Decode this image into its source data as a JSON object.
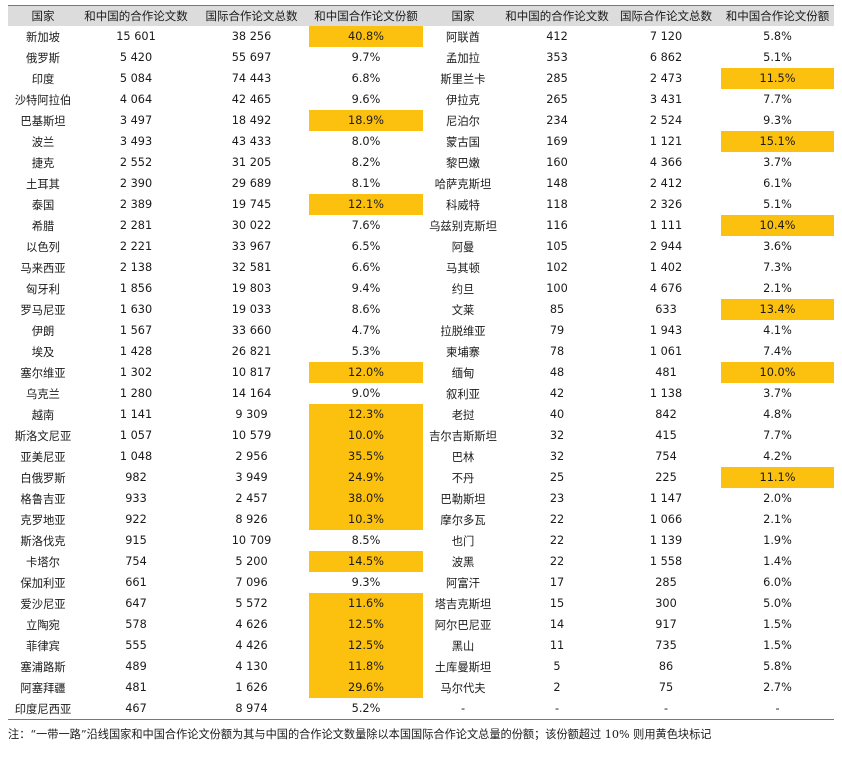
{
  "headers": [
    "国家",
    "和中国的合作论文数",
    "国际合作论文总数",
    "和中国合作论文份额",
    "国家",
    "和中国的合作论文数",
    "国际合作论文总数",
    "和中国合作论文份额"
  ],
  "rows": [
    {
      "c": "新加坡",
      "p": "15 601",
      "t": "38 256",
      "s": "40.8%",
      "h": true,
      "c2": "阿联酋",
      "p2": "412",
      "t2": "7 120",
      "s2": "5.8%",
      "h2": false
    },
    {
      "c": "俄罗斯",
      "p": "5 420",
      "t": "55 697",
      "s": "9.7%",
      "h": false,
      "c2": "孟加拉",
      "p2": "353",
      "t2": "6 862",
      "s2": "5.1%",
      "h2": false
    },
    {
      "c": "印度",
      "p": "5 084",
      "t": "74 443",
      "s": "6.8%",
      "h": false,
      "c2": "斯里兰卡",
      "p2": "285",
      "t2": "2 473",
      "s2": "11.5%",
      "h2": true
    },
    {
      "c": "沙特阿拉伯",
      "p": "4 064",
      "t": "42 465",
      "s": "9.6%",
      "h": false,
      "c2": "伊拉克",
      "p2": "265",
      "t2": "3 431",
      "s2": "7.7%",
      "h2": false
    },
    {
      "c": "巴基斯坦",
      "p": "3 497",
      "t": "18 492",
      "s": "18.9%",
      "h": true,
      "c2": "尼泊尔",
      "p2": "234",
      "t2": "2 524",
      "s2": "9.3%",
      "h2": false
    },
    {
      "c": "波兰",
      "p": "3 493",
      "t": "43 433",
      "s": "8.0%",
      "h": false,
      "c2": "蒙古国",
      "p2": "169",
      "t2": "1 121",
      "s2": "15.1%",
      "h2": true
    },
    {
      "c": "捷克",
      "p": "2 552",
      "t": "31 205",
      "s": "8.2%",
      "h": false,
      "c2": "黎巴嫩",
      "p2": "160",
      "t2": "4 366",
      "s2": "3.7%",
      "h2": false
    },
    {
      "c": "土耳其",
      "p": "2 390",
      "t": "29 689",
      "s": "8.1%",
      "h": false,
      "c2": "哈萨克斯坦",
      "p2": "148",
      "t2": "2 412",
      "s2": "6.1%",
      "h2": false
    },
    {
      "c": "泰国",
      "p": "2 389",
      "t": "19 745",
      "s": "12.1%",
      "h": true,
      "c2": "科威特",
      "p2": "118",
      "t2": "2 326",
      "s2": "5.1%",
      "h2": false
    },
    {
      "c": "希腊",
      "p": "2 281",
      "t": "30 022",
      "s": "7.6%",
      "h": false,
      "c2": "乌兹别克斯坦",
      "p2": "116",
      "t2": "1 111",
      "s2": "10.4%",
      "h2": true
    },
    {
      "c": "以色列",
      "p": "2 221",
      "t": "33 967",
      "s": "6.5%",
      "h": false,
      "c2": "阿曼",
      "p2": "105",
      "t2": "2 944",
      "s2": "3.6%",
      "h2": false
    },
    {
      "c": "马来西亚",
      "p": "2 138",
      "t": "32 581",
      "s": "6.6%",
      "h": false,
      "c2": "马其顿",
      "p2": "102",
      "t2": "1 402",
      "s2": "7.3%",
      "h2": false
    },
    {
      "c": "匈牙利",
      "p": "1 856",
      "t": "19 803",
      "s": "9.4%",
      "h": false,
      "c2": "约旦",
      "p2": "100",
      "t2": "4 676",
      "s2": "2.1%",
      "h2": false
    },
    {
      "c": "罗马尼亚",
      "p": "1 630",
      "t": "19 033",
      "s": "8.6%",
      "h": false,
      "c2": "文莱",
      "p2": "85",
      "t2": "633",
      "s2": "13.4%",
      "h2": true
    },
    {
      "c": "伊朗",
      "p": "1 567",
      "t": "33 660",
      "s": "4.7%",
      "h": false,
      "c2": "拉脱维亚",
      "p2": "79",
      "t2": "1 943",
      "s2": "4.1%",
      "h2": false
    },
    {
      "c": "埃及",
      "p": "1 428",
      "t": "26 821",
      "s": "5.3%",
      "h": false,
      "c2": "柬埔寨",
      "p2": "78",
      "t2": "1 061",
      "s2": "7.4%",
      "h2": false
    },
    {
      "c": "塞尔维亚",
      "p": "1 302",
      "t": "10 817",
      "s": "12.0%",
      "h": true,
      "c2": "缅甸",
      "p2": "48",
      "t2": "481",
      "s2": "10.0%",
      "h2": true
    },
    {
      "c": "乌克兰",
      "p": "1 280",
      "t": "14 164",
      "s": "9.0%",
      "h": false,
      "c2": "叙利亚",
      "p2": "42",
      "t2": "1 138",
      "s2": "3.7%",
      "h2": false
    },
    {
      "c": "越南",
      "p": "1 141",
      "t": "9 309",
      "s": "12.3%",
      "h": true,
      "c2": "老挝",
      "p2": "40",
      "t2": "842",
      "s2": "4.8%",
      "h2": false
    },
    {
      "c": "斯洛文尼亚",
      "p": "1 057",
      "t": "10 579",
      "s": "10.0%",
      "h": true,
      "c2": "吉尔吉斯斯坦",
      "p2": "32",
      "t2": "415",
      "s2": "7.7%",
      "h2": false
    },
    {
      "c": "亚美尼亚",
      "p": "1 048",
      "t": "2 956",
      "s": "35.5%",
      "h": true,
      "c2": "巴林",
      "p2": "32",
      "t2": "754",
      "s2": "4.2%",
      "h2": false
    },
    {
      "c": "白俄罗斯",
      "p": "982",
      "t": "3 949",
      "s": "24.9%",
      "h": true,
      "c2": "不丹",
      "p2": "25",
      "t2": "225",
      "s2": "11.1%",
      "h2": true
    },
    {
      "c": "格鲁吉亚",
      "p": "933",
      "t": "2 457",
      "s": "38.0%",
      "h": true,
      "c2": "巴勒斯坦",
      "p2": "23",
      "t2": "1 147",
      "s2": "2.0%",
      "h2": false
    },
    {
      "c": "克罗地亚",
      "p": "922",
      "t": "8 926",
      "s": "10.3%",
      "h": true,
      "c2": "摩尔多瓦",
      "p2": "22",
      "t2": "1 066",
      "s2": "2.1%",
      "h2": false
    },
    {
      "c": "斯洛伐克",
      "p": "915",
      "t": "10 709",
      "s": "8.5%",
      "h": false,
      "c2": "也门",
      "p2": "22",
      "t2": "1 139",
      "s2": "1.9%",
      "h2": false
    },
    {
      "c": "卡塔尔",
      "p": "754",
      "t": "5 200",
      "s": "14.5%",
      "h": true,
      "c2": "波黑",
      "p2": "22",
      "t2": "1 558",
      "s2": "1.4%",
      "h2": false
    },
    {
      "c": "保加利亚",
      "p": "661",
      "t": "7 096",
      "s": "9.3%",
      "h": false,
      "c2": "阿富汗",
      "p2": "17",
      "t2": "285",
      "s2": "6.0%",
      "h2": false
    },
    {
      "c": "爱沙尼亚",
      "p": "647",
      "t": "5 572",
      "s": "11.6%",
      "h": true,
      "c2": "塔吉克斯坦",
      "p2": "15",
      "t2": "300",
      "s2": "5.0%",
      "h2": false
    },
    {
      "c": "立陶宛",
      "p": "578",
      "t": "4 626",
      "s": "12.5%",
      "h": true,
      "c2": "阿尔巴尼亚",
      "p2": "14",
      "t2": "917",
      "s2": "1.5%",
      "h2": false
    },
    {
      "c": "菲律宾",
      "p": "555",
      "t": "4 426",
      "s": "12.5%",
      "h": true,
      "c2": "黑山",
      "p2": "11",
      "t2": "735",
      "s2": "1.5%",
      "h2": false
    },
    {
      "c": "塞浦路斯",
      "p": "489",
      "t": "4 130",
      "s": "11.8%",
      "h": true,
      "c2": "土库曼斯坦",
      "p2": "5",
      "t2": "86",
      "s2": "5.8%",
      "h2": false
    },
    {
      "c": "阿塞拜疆",
      "p": "481",
      "t": "1 626",
      "s": "29.6%",
      "h": true,
      "c2": "马尔代夫",
      "p2": "2",
      "t2": "75",
      "s2": "2.7%",
      "h2": false
    },
    {
      "c": "印度尼西亚",
      "p": "467",
      "t": "8 974",
      "s": "5.2%",
      "h": false,
      "c2": "-",
      "p2": "-",
      "t2": "-",
      "s2": "-",
      "h2": false
    }
  ],
  "note": "注：“一带一路”沿线国家和中国合作论文份额为其与中国的合作论文数量除以本国国际合作论文总量的份额；该份额超过 10% 则用黄色块标记",
  "colors": {
    "highlight": "#fcc00f",
    "header_bg": "#dcdcdc"
  }
}
